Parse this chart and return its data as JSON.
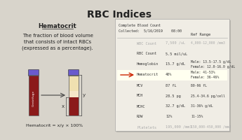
{
  "title": "RBC Indices",
  "bg_color": "#d8d4cb",
  "left_panel": {
    "heading": "Hematocrit",
    "description": "The fraction of blood volume\nthat consists of intact RBCs\n(expressed as a percentage).",
    "formula": "Hematocrit = x/y × 100%"
  },
  "cbc_header": "Complete Blood Count\nCollected:  5/16/2019    08:00",
  "col_header": "Ref Range",
  "rows": [
    {
      "name": "WBC Count",
      "value": "7,500 /uL",
      "ref": "4,000-12,000 /mm3",
      "greyed": true,
      "highlighted": false
    },
    {
      "name": "RBC Count",
      "value": "5.5 mil/uL",
      "ref": "",
      "greyed": false,
      "highlighted": false
    },
    {
      "name": "Hemoglobin",
      "value": "15.7 g/dL",
      "ref": "Male: 13.5-17.5 g/dL\nFemale: 12.0-16.0 g/dL",
      "greyed": false,
      "highlighted": false
    },
    {
      "name": "Hematocrit",
      "value": "40%",
      "ref": "Male: 41-53%\nFemale: 36-46%",
      "greyed": false,
      "highlighted": true
    },
    {
      "name": "MCV",
      "value": "87 fL",
      "ref": "80-96 fL",
      "greyed": false,
      "highlighted": false
    },
    {
      "name": "MCH",
      "value": "28.5 pg",
      "ref": "25.4-34.6 pg/cell",
      "greyed": false,
      "highlighted": false
    },
    {
      "name": "MCHC",
      "value": "32.7 g/dL",
      "ref": "31-36% g/dL",
      "greyed": false,
      "highlighted": false
    },
    {
      "name": "RDW",
      "value": "12%",
      "ref": "11-15%",
      "greyed": false,
      "highlighted": false
    },
    {
      "name": "Platelets",
      "value": "195,000 /mm3",
      "ref": "150,000-450,000 /mm3",
      "greyed": true,
      "highlighted": false
    }
  ],
  "tube_colors": {
    "cap": "#6a5acd",
    "blood_dark": "#8b1a1a",
    "buffy": "#f5e6c8",
    "plasma": "#f0e0b0"
  },
  "arrow_color": "#cc2200",
  "panel_bg": "#f5f3ee",
  "paper_bg": "#f0ede5"
}
